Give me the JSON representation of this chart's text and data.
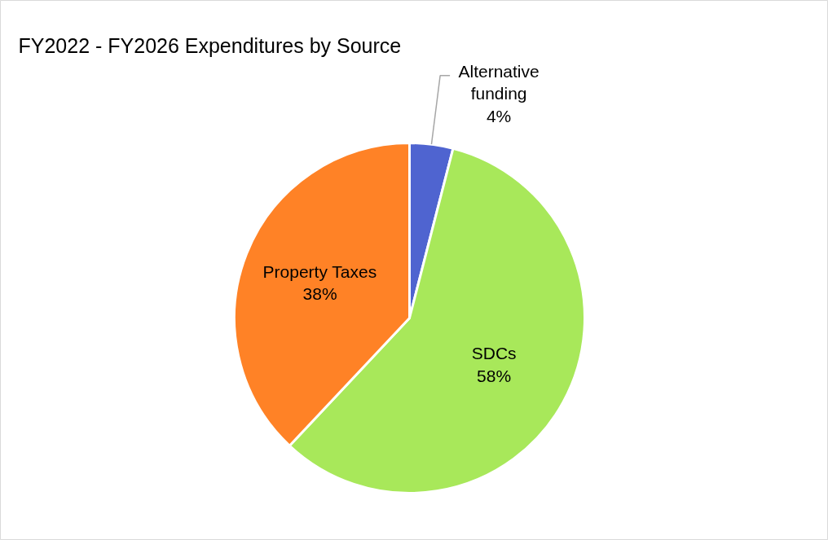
{
  "chart_data": {
    "type": "pie",
    "title": "FY2022 - FY2026 Expenditures by Source",
    "categories": [
      "Alternative funding",
      "SDCs",
      "Property Taxes"
    ],
    "values": [
      4,
      58,
      38
    ],
    "value_labels": [
      "4%",
      "58%",
      "38%"
    ],
    "colors": [
      "#4f64d0",
      "#a8e85a",
      "#ff8226"
    ]
  }
}
